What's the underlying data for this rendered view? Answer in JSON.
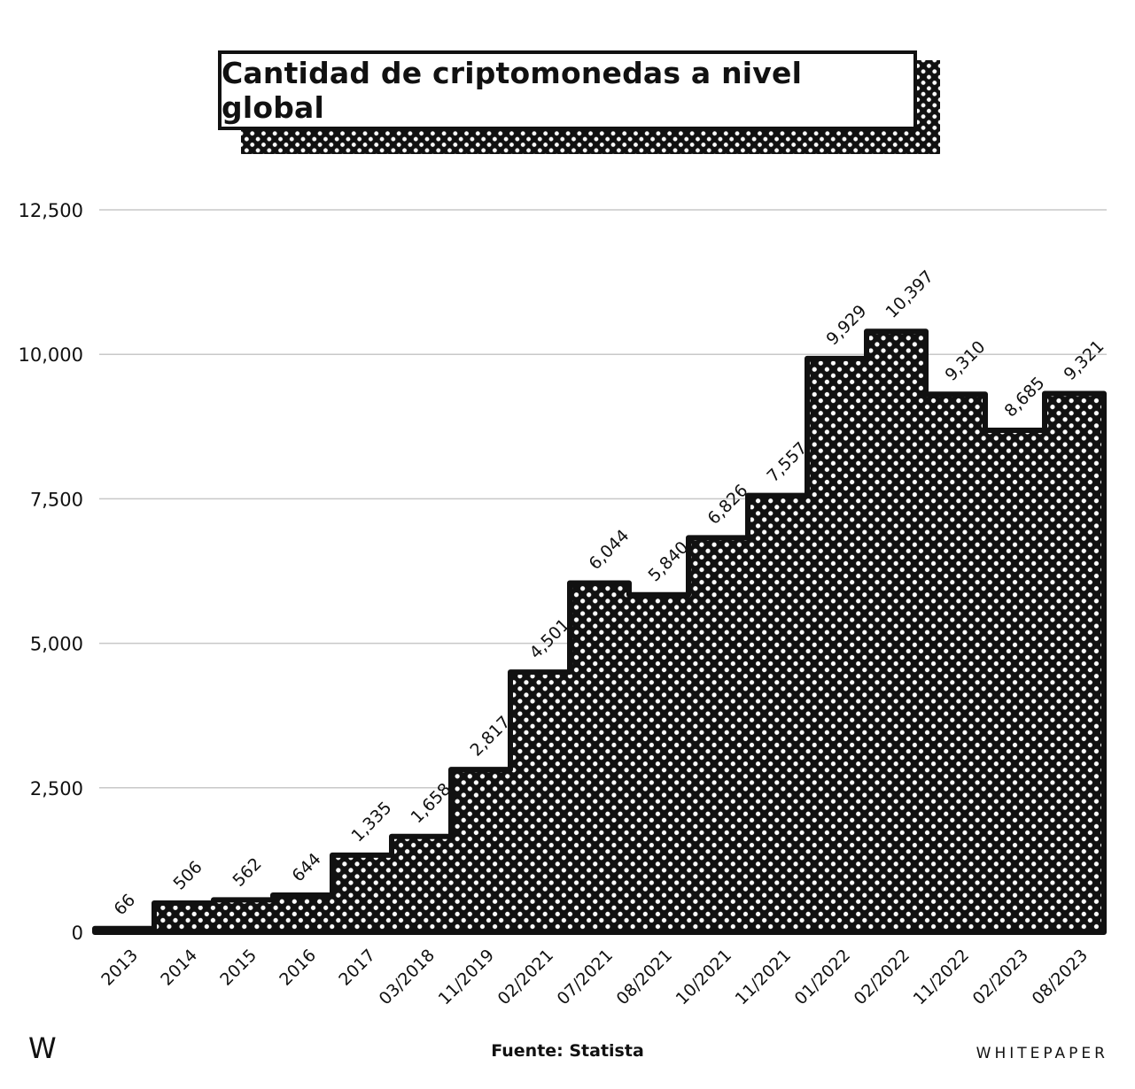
{
  "chart_data": {
    "type": "area",
    "title": "Cantidad de criptomonedas a nivel global",
    "xlabel": "",
    "ylabel": "",
    "categories": [
      "2013",
      "2014",
      "2015",
      "2016",
      "2017",
      "03/2018",
      "11/2019",
      "02/2021",
      "07/2021",
      "08/2021",
      "10/2021",
      "11/2021",
      "01/2022",
      "02/2022",
      "11/2022",
      "02/2023",
      "08/2023"
    ],
    "values": [
      66,
      506,
      562,
      644,
      1335,
      1658,
      2817,
      4501,
      6044,
      5840,
      6826,
      7557,
      9929,
      10397,
      9310,
      8685,
      9321
    ],
    "value_labels": [
      "66",
      "506",
      "562",
      "644",
      "1,335",
      "1,658",
      "2,817",
      "4,501",
      "6,044",
      "5,840",
      "6,826",
      "7,557",
      "9,929",
      "10,397",
      "9,310",
      "8,685",
      "9,321"
    ],
    "y_ticks": [
      0,
      2500,
      5000,
      7500,
      10000,
      12500
    ],
    "y_tick_labels": [
      "0",
      "2,500",
      "5,000",
      "7,500",
      "10,000",
      "12,500"
    ],
    "ylim": [
      0,
      12500
    ],
    "grid": true,
    "style": "step",
    "fill": "halftone-black",
    "legend": "none"
  },
  "footer": {
    "source": "Fuente: Statista",
    "brand": "WHITEPAPER",
    "logo_letter": "W"
  },
  "colors": {
    "ink": "#111111",
    "grid": "#c8c8c8",
    "background": "#ffffff"
  }
}
